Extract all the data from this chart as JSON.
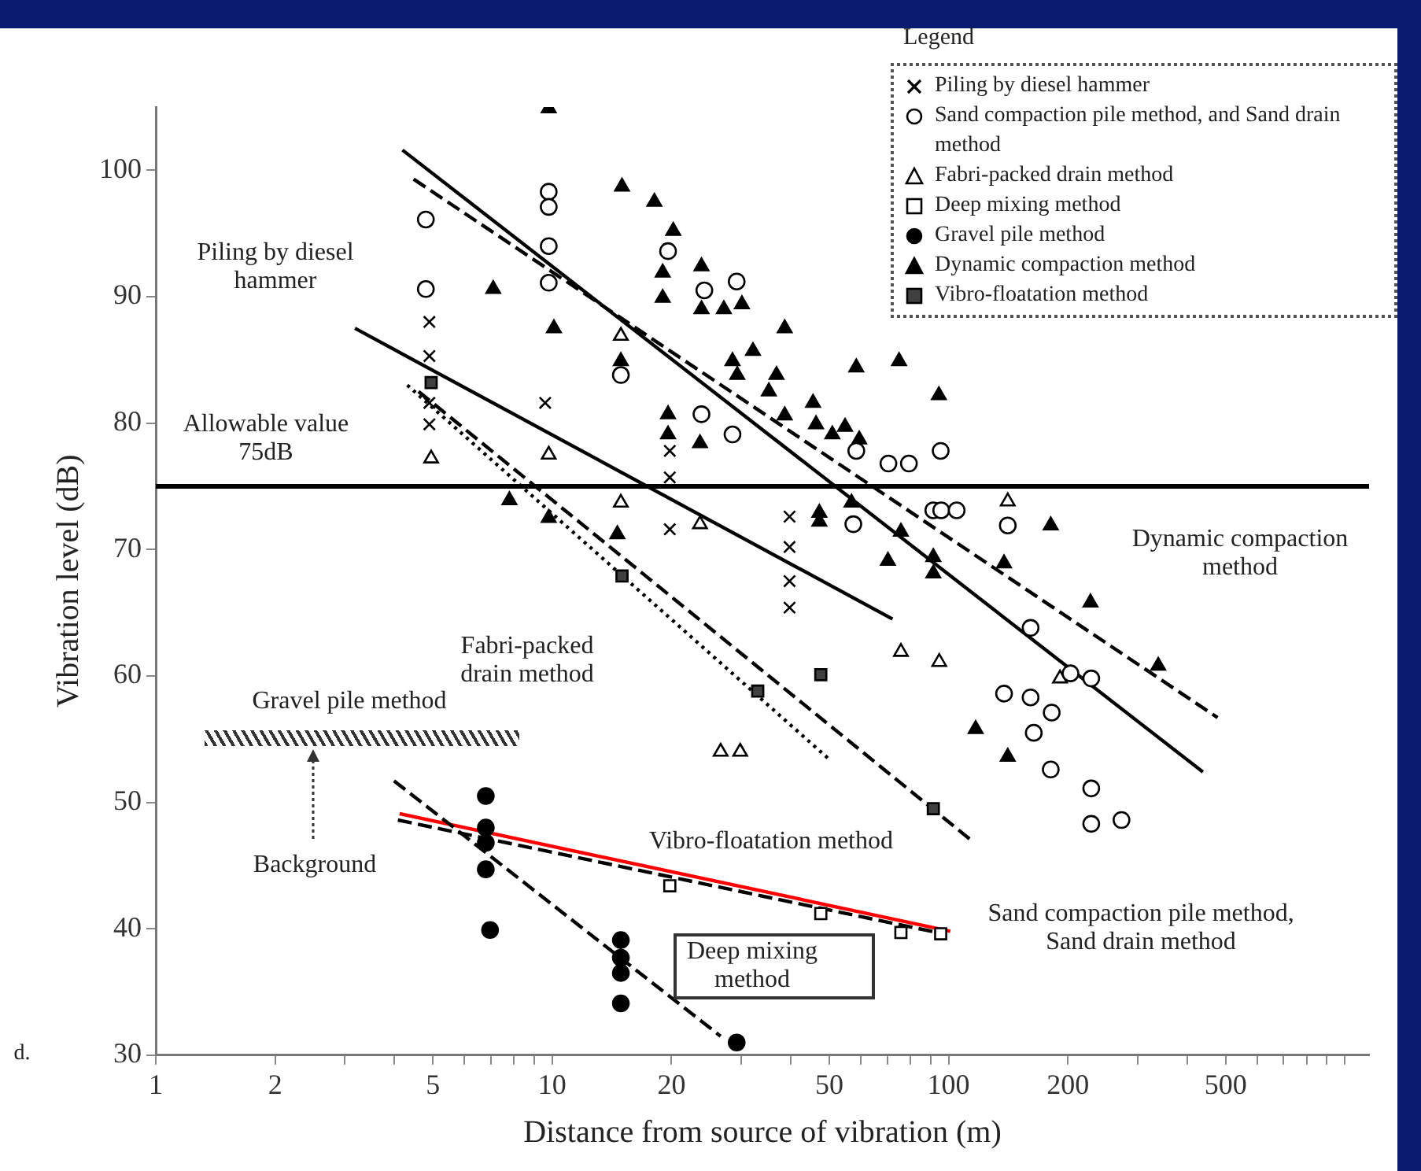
{
  "chart_data": {
    "type": "scatter",
    "xlabel": "Distance from source of vibration (m)",
    "ylabel": "Vibration level (dB)",
    "legend_title": "Legend",
    "legend": "top right",
    "grid": false,
    "log": "x",
    "xlim": [
      1,
      1150
    ],
    "xticks": [
      1,
      2,
      {
        "value": 3,
        "label": null
      },
      {
        "value": 4,
        "label": null
      },
      5,
      {
        "value": 6,
        "label": null
      },
      {
        "value": 7,
        "label": null
      },
      {
        "value": 8,
        "label": null
      },
      {
        "value": 9,
        "label": null
      },
      10,
      20,
      {
        "value": 30,
        "label": null
      },
      {
        "value": 40,
        "label": null
      },
      50,
      {
        "value": 60,
        "label": null
      },
      {
        "value": 70,
        "label": null
      },
      {
        "value": 80,
        "label": null
      },
      {
        "value": 90,
        "label": null
      },
      100,
      200,
      {
        "value": 300,
        "label": null
      },
      {
        "value": 400,
        "label": null
      },
      500,
      {
        "value": 600,
        "label": null
      },
      {
        "value": 700,
        "label": null
      },
      {
        "value": 800,
        "label": null
      },
      {
        "value": 900,
        "label": null
      },
      {
        "value": 1000,
        "label": null
      }
    ],
    "ylim": [
      30,
      105
    ],
    "yticks": [
      30,
      40,
      50,
      60,
      70,
      80,
      90,
      100
    ],
    "ref_lines": [
      {
        "axis": "y",
        "value": 75,
        "label": "Allowable value\n75dB",
        "color": "#000000"
      }
    ],
    "series": [
      {
        "name": "Piling by diesel hammer",
        "type": "scatter",
        "marker": "cross",
        "color": "#000000",
        "x": [
          4.9,
          4.9,
          4.9,
          4.9,
          9.6,
          19.8,
          19.8,
          19.8,
          39.7,
          39.7,
          39.7,
          39.7
        ],
        "values": [
          88.0,
          85.3,
          81.6,
          79.9,
          81.6,
          77.8,
          75.7,
          71.6,
          72.6,
          70.2,
          67.5,
          65.4
        ]
      },
      {
        "name": "Sand compaction pile method, and Sand drain method",
        "type": "scatter",
        "marker": "circle",
        "color": "#ffffff",
        "x": [
          4.8,
          4.8,
          9.8,
          9.8,
          9.8,
          9.8,
          14.9,
          19.6,
          24.2,
          29.2,
          23.8,
          28.5,
          58.5,
          70.5,
          79.4,
          95.5,
          57.5,
          91.5,
          95.8,
          104.8,
          141,
          161,
          138,
          161,
          182,
          164,
          229,
          203,
          181,
          229,
          229,
          273
        ],
        "values": [
          96.1,
          90.6,
          98.3,
          97.1,
          94.0,
          91.1,
          83.8,
          93.6,
          90.5,
          91.2,
          80.7,
          79.1,
          77.8,
          76.8,
          76.8,
          77.8,
          72.0,
          73.1,
          73.1,
          73.1,
          71.9,
          63.8,
          58.6,
          58.3,
          57.1,
          55.5,
          59.8,
          60.2,
          52.6,
          51.1,
          48.3,
          48.6
        ]
      },
      {
        "name": "Fabri-packed drain method",
        "type": "scatter",
        "marker": "triangle",
        "color": "#ffffff",
        "x": [
          4.95,
          9.8,
          14.9,
          14.9,
          23.6,
          75.8,
          94.7,
          26.6,
          29.8,
          191,
          141
        ],
        "values": [
          77.2,
          77.5,
          86.9,
          73.7,
          72.0,
          61.9,
          61.1,
          54.0,
          54.0,
          59.8,
          73.8
        ]
      },
      {
        "name": "Deep mixing method",
        "type": "scatter",
        "marker": "square",
        "color": "#ffffff",
        "x": [
          19.8,
          47.6,
          75.8,
          95.5
        ],
        "values": [
          43.4,
          41.2,
          39.7,
          39.6
        ]
      },
      {
        "name": "Gravel pile method",
        "type": "scatter",
        "marker": "circle",
        "color": "#000000",
        "x": [
          6.8,
          6.8,
          6.8,
          6.8,
          6.97,
          14.9,
          14.9,
          14.9,
          14.9,
          29.2
        ],
        "values": [
          50.5,
          48.0,
          46.8,
          44.7,
          39.9,
          39.1,
          37.7,
          36.5,
          34.1,
          31.0
        ]
      },
      {
        "name": "Dynamic compaction method",
        "type": "scatter",
        "marker": "triangle",
        "color": "#000000",
        "x": [
          9.8,
          15.0,
          18.1,
          20.2,
          19.0,
          19.0,
          7.1,
          10.1,
          14.9,
          23.8,
          23.8,
          27.1,
          30.1,
          38.6,
          19.6,
          19.6,
          23.6,
          7.8,
          9.8,
          14.6,
          58.5,
          75,
          94.5,
          28.5,
          32.1,
          29.3,
          36.8,
          35.2,
          38.6,
          45.5,
          46.3,
          50.9,
          54.8,
          59.5,
          47.2,
          47.2,
          56.9,
          75.8,
          70.3,
          91.5,
          91.5,
          181,
          138,
          228,
          338,
          117,
          141
        ],
        "values": [
          104.9,
          98.7,
          97.5,
          95.2,
          91.9,
          89.9,
          90.6,
          87.5,
          84.9,
          92.4,
          89.0,
          89.0,
          89.4,
          87.5,
          80.7,
          79.1,
          78.4,
          73.9,
          72.5,
          71.2,
          84.4,
          84.9,
          82.2,
          84.9,
          85.7,
          83.8,
          83.8,
          82.5,
          80.6,
          81.6,
          79.9,
          79.1,
          79.7,
          78.7,
          72.9,
          72.2,
          73.7,
          71.4,
          69.1,
          69.4,
          68.1,
          71.9,
          68.9,
          65.8,
          60.8,
          55.8,
          53.6
        ]
      },
      {
        "name": "Vibro-floatation method",
        "type": "scatter",
        "marker": "square",
        "color": "#404040",
        "x": [
          4.95,
          15.0,
          47.6,
          33.0,
          91.5
        ],
        "values": [
          83.2,
          67.9,
          60.1,
          58.8,
          49.5
        ]
      },
      {
        "type": "line",
        "marker": "none",
        "line_style": "solid",
        "color": "#000000",
        "x": [
          3.18,
          72.2
        ],
        "values": [
          87.5,
          64.5
        ]
      },
      {
        "type": "line",
        "marker": "none",
        "line_style": "solid",
        "color": "#000000",
        "x": [
          4.19,
          438
        ],
        "values": [
          101.6,
          52.4
        ]
      },
      {
        "type": "line",
        "marker": "none",
        "line_style": "dashed",
        "color": "#000000",
        "x": [
          4.47,
          477
        ],
        "values": [
          99.3,
          56.7
        ]
      },
      {
        "type": "line",
        "marker": "none",
        "line_style": "dotted",
        "color": "#000000",
        "x": [
          4.31,
          50.0
        ],
        "values": [
          83.0,
          53.4
        ]
      },
      {
        "type": "line",
        "marker": "none",
        "line_style": "dashed",
        "color": "#000000",
        "x": [
          4.6,
          113
        ],
        "values": [
          82.5,
          47.1
        ]
      },
      {
        "type": "line",
        "marker": "none",
        "line_style": "dashed",
        "color": "#000000",
        "x": [
          4.08,
          97
        ],
        "values": [
          48.6,
          39.6
        ]
      },
      {
        "type": "line",
        "marker": "none",
        "line_style": "dashed",
        "color": "#000000",
        "x": [
          3.99,
          26.6
        ],
        "values": [
          51.7,
          31.5
        ]
      },
      {
        "type": "line",
        "marker": "none",
        "line_style": "solid",
        "color": "#ff0000",
        "x": [
          4.12,
          101
        ],
        "values": [
          49.1,
          39.8
        ]
      }
    ],
    "annotations": [
      "Piling by diesel\nhammer",
      "Fabri-packed\ndrain method",
      "Gravel pile method",
      "Background",
      "Vibro-floatation method",
      "Deep mixing\nmethod",
      "Dynamic compaction\nmethod",
      "Sand compaction pile method,\nSand drain method",
      "d."
    ]
  }
}
